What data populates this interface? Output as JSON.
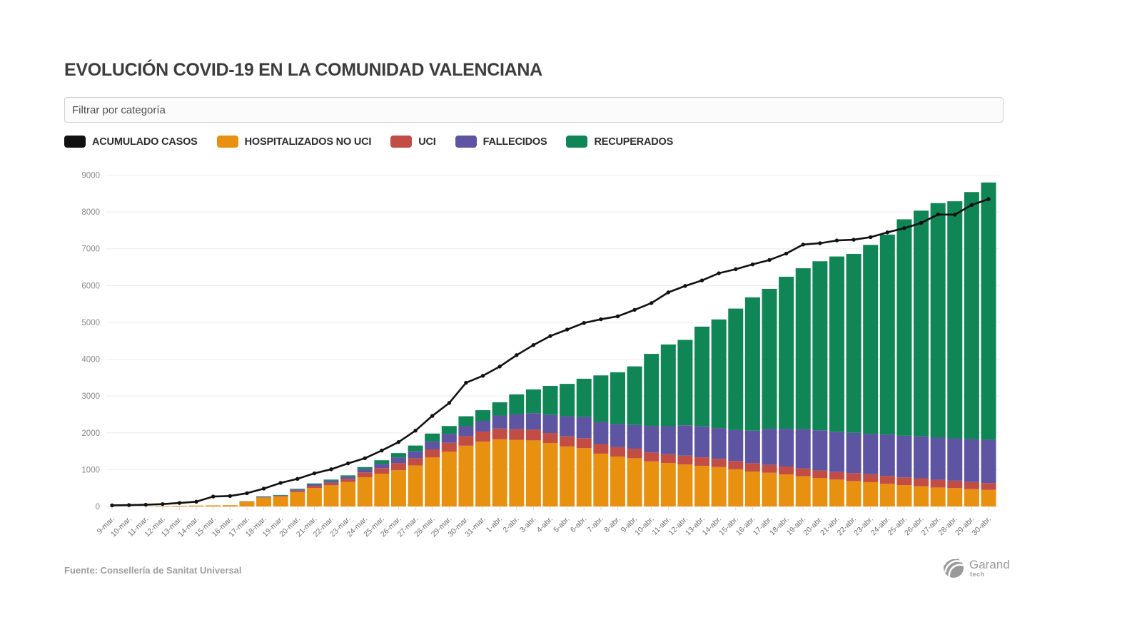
{
  "header": {
    "title": "EVOLUCIÓN COVID-19 EN LA COMUNIDAD VALENCIANA"
  },
  "filter": {
    "placeholder": "Filtrar por categoría"
  },
  "legend": [
    {
      "label": "ACUMULADO CASOS",
      "color": "#111111"
    },
    {
      "label": "HOSPITALIZADOS NO UCI",
      "color": "#E8900F"
    },
    {
      "label": "UCI",
      "color": "#C24D44"
    },
    {
      "label": "FALLECIDOS",
      "color": "#5E55A2"
    },
    {
      "label": "RECUPERADOS",
      "color": "#108556"
    }
  ],
  "footer": {
    "source": "Fuente: Consellería de Sanitat Universal",
    "brand": "Garand",
    "brand_sub": "tech"
  },
  "chart_data": {
    "type": "bar",
    "subtype": "stacked-bars-with-line-overlay",
    "title": "EVOLUCIÓN COVID-19 EN LA COMUNIDAD VALENCIANA",
    "xlabel": "",
    "ylabel": "",
    "ylim": [
      0,
      9000
    ],
    "yticks": [
      0,
      1000,
      2000,
      3000,
      4000,
      5000,
      6000,
      7000,
      8000,
      9000
    ],
    "grid": true,
    "legend_position": "top",
    "categories": [
      "9-mar.",
      "10-mar.",
      "11-mar.",
      "12-mar.",
      "13-mar.",
      "14-mar.",
      "15-mar.",
      "16-mar.",
      "17-mar.",
      "18-mar.",
      "19-mar.",
      "20-mar.",
      "21-mar.",
      "22-mar.",
      "23-mar.",
      "24-mar.",
      "25-mar.",
      "26-mar.",
      "27-mar.",
      "28-mar.",
      "29-mar.",
      "30-mar.",
      "31-mar.",
      "1-abr.",
      "2-abr.",
      "3-abr.",
      "4-abr.",
      "5-abr.",
      "6-abr.",
      "7-abr.",
      "8-abr.",
      "9-abr.",
      "10-abr.",
      "11-abr.",
      "12-abr.",
      "13-abr.",
      "14-abr.",
      "15-abr.",
      "16-abr.",
      "17-abr.",
      "18-abr.",
      "19-abr.",
      "20-abr.",
      "21-abr.",
      "22-abr.",
      "23-abr.",
      "24-abr.",
      "25-abr.",
      "26-abr.",
      "27-abr.",
      "28-abr.",
      "29-abr.",
      "30-abr."
    ],
    "series": [
      {
        "name": "HOSPITALIZADOS NO UCI",
        "kind": "bar",
        "color": "#E8900F",
        "values": [
          0,
          0,
          5,
          15,
          20,
          25,
          30,
          35,
          130,
          240,
          270,
          390,
          500,
          575,
          665,
          795,
          890,
          985,
          1115,
          1330,
          1490,
          1650,
          1760,
          1825,
          1805,
          1795,
          1725,
          1630,
          1585,
          1435,
          1355,
          1310,
          1225,
          1180,
          1140,
          1105,
          1070,
          1010,
          950,
          915,
          870,
          820,
          775,
          730,
          690,
          660,
          615,
          580,
          550,
          515,
          500,
          470,
          450
        ]
      },
      {
        "name": "UCI",
        "kind": "bar",
        "color": "#C24D44",
        "values": [
          0,
          0,
          0,
          0,
          0,
          0,
          0,
          0,
          5,
          10,
          15,
          40,
          60,
          70,
          85,
          130,
          150,
          195,
          195,
          220,
          240,
          260,
          275,
          290,
          295,
          290,
          270,
          275,
          270,
          260,
          255,
          260,
          245,
          240,
          240,
          230,
          225,
          225,
          225,
          215,
          215,
          215,
          205,
          205,
          215,
          215,
          215,
          210,
          215,
          210,
          200,
          195,
          185
        ]
      },
      {
        "name": "FALLECIDOS",
        "kind": "bar",
        "color": "#5E55A2",
        "values": [
          0,
          0,
          0,
          0,
          0,
          0,
          0,
          0,
          3,
          10,
          12,
          30,
          40,
          55,
          60,
          95,
          120,
          150,
          195,
          215,
          245,
          270,
          290,
          355,
          410,
          450,
          490,
          545,
          580,
          600,
          630,
          645,
          720,
          760,
          825,
          840,
          835,
          840,
          885,
          980,
          1025,
          1065,
          1090,
          1095,
          1095,
          1100,
          1125,
          1130,
          1140,
          1145,
          1150,
          1165,
          1175
        ]
      },
      {
        "name": "RECUPERADOS",
        "kind": "bar",
        "color": "#108556",
        "values": [
          0,
          0,
          0,
          0,
          0,
          0,
          0,
          0,
          5,
          15,
          15,
          20,
          25,
          30,
          35,
          50,
          95,
          120,
          150,
          215,
          210,
          270,
          290,
          360,
          535,
          645,
          790,
          880,
          1035,
          1265,
          1405,
          1590,
          1955,
          2220,
          2320,
          2710,
          2950,
          3300,
          3620,
          3800,
          4130,
          4370,
          4590,
          4760,
          4860,
          5130,
          5430,
          5880,
          6130,
          6370,
          6440,
          6710,
          6990
        ]
      },
      {
        "name": "ACUMULADO CASOS",
        "kind": "line",
        "color": "#111111",
        "values": [
          30,
          37,
          48,
          65,
          95,
          130,
          270,
          285,
          360,
          485,
          640,
          750,
          900,
          1010,
          1170,
          1310,
          1520,
          1750,
          2060,
          2460,
          2810,
          3360,
          3550,
          3800,
          4110,
          4385,
          4630,
          4805,
          4985,
          5085,
          5165,
          5340,
          5525,
          5815,
          5990,
          6140,
          6335,
          6445,
          6575,
          6695,
          6870,
          7115,
          7150,
          7225,
          7245,
          7315,
          7445,
          7560,
          7700,
          7930,
          7925,
          8190,
          8350
        ]
      }
    ]
  }
}
